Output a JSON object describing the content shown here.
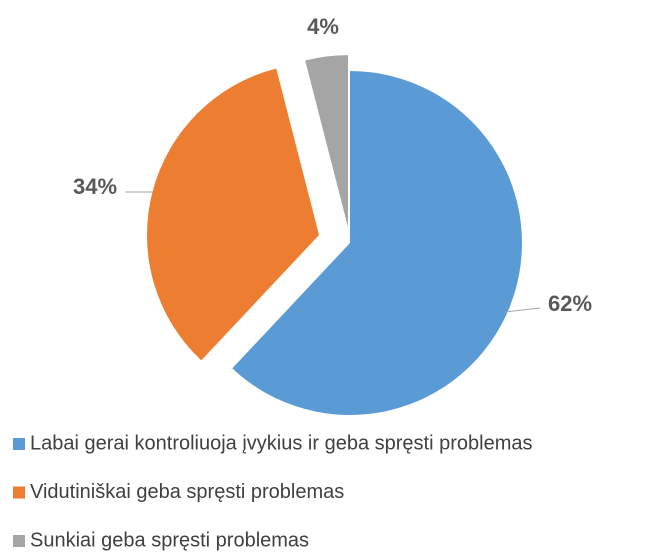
{
  "chart_data": {
    "type": "pie",
    "categories": [
      "Labai gerai kontroliuoja įvykius ir geba spręsti problemas",
      "Vidutiniškai geba spręsti problemas",
      "Sunkiai geba spręsti problemas"
    ],
    "values": [
      62,
      34,
      4
    ],
    "value_labels": [
      "62%",
      "34%",
      "4%"
    ],
    "colors": [
      "#5b9bd5",
      "#ed7d31",
      "#a5a5a5"
    ],
    "legend": "bottom"
  }
}
